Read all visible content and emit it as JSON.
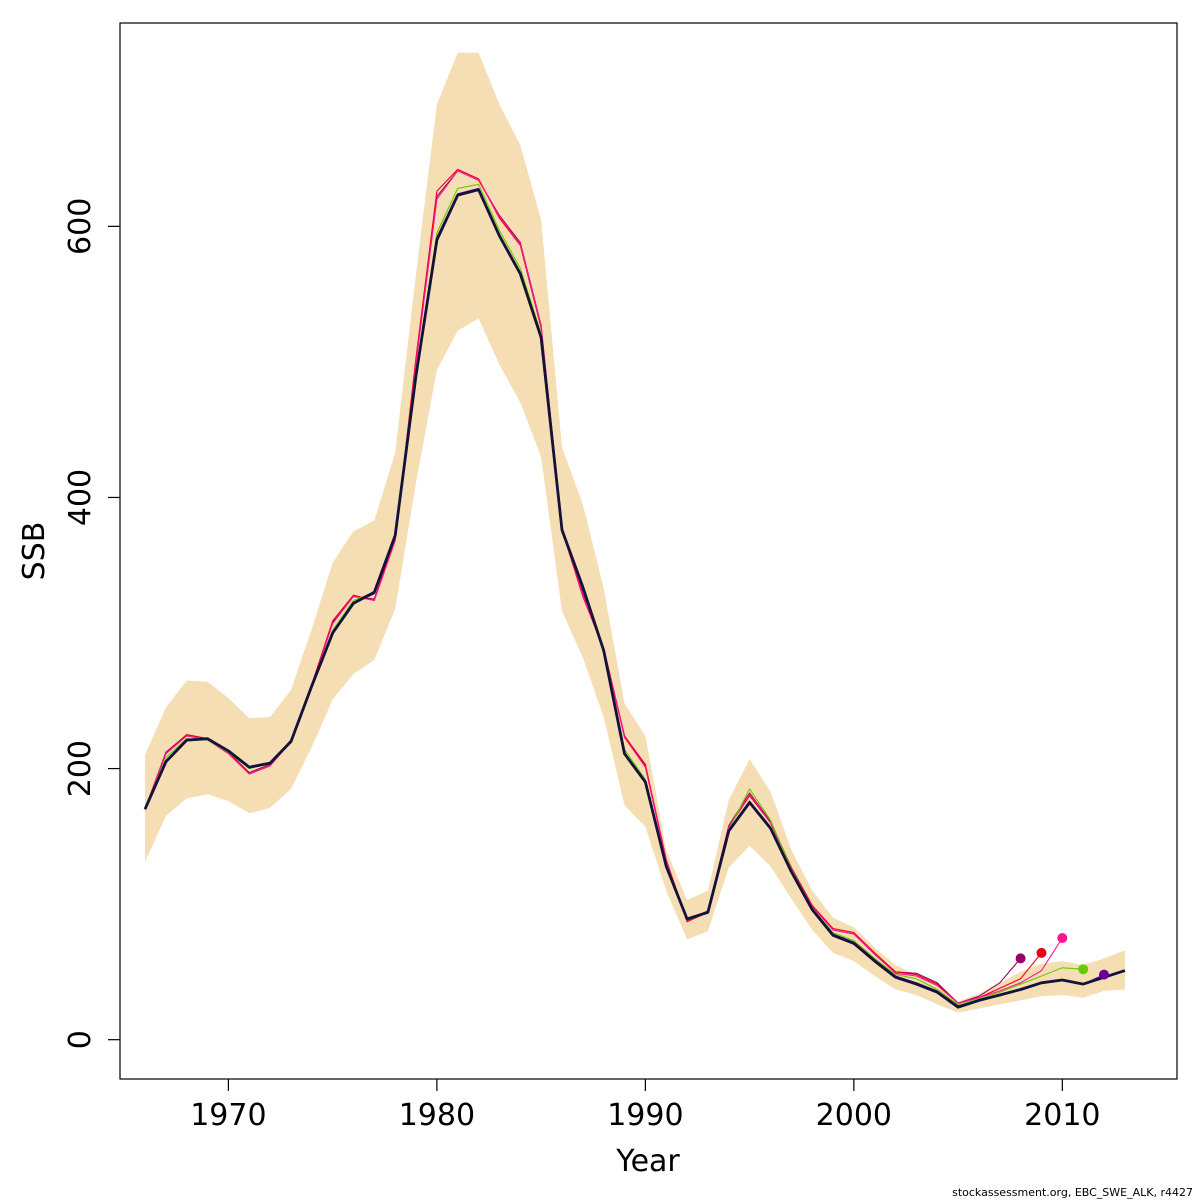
{
  "chart_data": {
    "type": "line",
    "title": "",
    "xlabel": "Year",
    "ylabel": "SSB",
    "xlim": [
      1964.8,
      2015.5
    ],
    "ylim": [
      -29,
      750
    ],
    "x_ticks": [
      1970,
      1980,
      1990,
      2000,
      2010
    ],
    "y_ticks": [
      0,
      200,
      400,
      600
    ],
    "grid": false,
    "legend": "none",
    "credit": "stockassessment.org, EBC_SWE_ALK, r4427",
    "colors": {
      "band": "#F5DEB3",
      "main": "#14113A",
      "retro": [
        "#990066",
        "#E8001B",
        "#FF1493",
        "#66CC00",
        "#660099"
      ]
    },
    "band": {
      "x": [
        1966,
        1967,
        1968,
        1969,
        1970,
        1971,
        1972,
        1973,
        1974,
        1975,
        1976,
        1977,
        1978,
        1979,
        1980,
        1981,
        1982,
        1983,
        1984,
        1985,
        1986,
        1987,
        1988,
        1989,
        1990,
        1991,
        1992,
        1993,
        1994,
        1995,
        1996,
        1997,
        1998,
        1999,
        2000,
        2001,
        2002,
        2003,
        2004,
        2005,
        2006,
        2007,
        2008,
        2009,
        2010,
        2011,
        2012,
        2013
      ],
      "lower": [
        131,
        165,
        178,
        181,
        176,
        167,
        171,
        185,
        216,
        251,
        270,
        280,
        318,
        411,
        494,
        523,
        532,
        498,
        470,
        430,
        316,
        282,
        238,
        173,
        157,
        110,
        74,
        80,
        127,
        143,
        128,
        104,
        81,
        64,
        58,
        47,
        37,
        33,
        26,
        20,
        23,
        26,
        29,
        32,
        33,
        31,
        36,
        37
      ],
      "upper": [
        210,
        245,
        265,
        264,
        252,
        237,
        238,
        258,
        303,
        352,
        375,
        383,
        433,
        565,
        690,
        728,
        728,
        690,
        660,
        605,
        437,
        395,
        333,
        248,
        224,
        140,
        103,
        110,
        177,
        207,
        183,
        140,
        110,
        90,
        83,
        68,
        55,
        48,
        42,
        28,
        34,
        42,
        50,
        56,
        58,
        55,
        60,
        66
      ]
    },
    "series": [
      {
        "x": [
          1966,
          1967,
          1968,
          1969,
          1970,
          1971,
          1972,
          1973,
          1974,
          1975,
          1976,
          1977,
          1978,
          1979,
          1980,
          1981,
          1982,
          1983,
          1984,
          1985,
          1986,
          1987,
          1988,
          1989,
          1990,
          1991,
          1992,
          1993,
          1994,
          1995,
          1996,
          1997,
          1998,
          1999,
          2000,
          2001,
          2002,
          2003,
          2004,
          2005,
          2006,
          2007,
          2008
        ],
        "values": [
          170,
          212,
          225,
          222,
          212,
          197,
          203,
          221,
          262,
          308,
          327,
          325,
          370,
          500,
          622,
          641,
          634,
          608,
          588,
          527,
          378,
          330,
          289,
          224,
          202,
          132,
          88,
          95,
          158,
          182,
          161,
          127,
          99,
          81,
          78,
          63,
          50,
          49,
          42,
          27,
          32,
          42,
          60
        ]
      },
      {
        "x": [
          1966,
          1967,
          1968,
          1969,
          1970,
          1971,
          1972,
          1973,
          1974,
          1975,
          1976,
          1977,
          1978,
          1979,
          1980,
          1981,
          1982,
          1983,
          1984,
          1985,
          1986,
          1987,
          1988,
          1989,
          1990,
          1991,
          1992,
          1993,
          1994,
          1995,
          1996,
          1997,
          1998,
          1999,
          2000,
          2001,
          2002,
          2003,
          2004,
          2005,
          2006,
          2007,
          2008,
          2009
        ],
        "values": [
          170,
          211,
          225,
          222,
          212,
          196,
          202,
          221,
          262,
          309,
          328,
          324,
          369,
          503,
          626,
          642,
          635,
          606,
          586,
          525,
          376,
          327,
          288,
          224,
          203,
          133,
          87,
          94,
          157,
          180,
          160,
          127,
          99,
          82,
          79,
          64,
          50,
          48,
          41,
          27,
          31,
          38,
          45,
          64
        ]
      },
      {
        "x": [
          1966,
          1967,
          1968,
          1969,
          1970,
          1971,
          1972,
          1973,
          1974,
          1975,
          1976,
          1977,
          1978,
          1979,
          1980,
          1981,
          1982,
          1983,
          1984,
          1985,
          1986,
          1987,
          1988,
          1989,
          1990,
          1991,
          1992,
          1993,
          1994,
          1995,
          1996,
          1997,
          1998,
          1999,
          2000,
          2001,
          2002,
          2003,
          2004,
          2005,
          2006,
          2007,
          2008,
          2009,
          2010
        ],
        "values": [
          170,
          211,
          224,
          221,
          211,
          196,
          202,
          220,
          261,
          307,
          327,
          324,
          368,
          499,
          620,
          641,
          634,
          607,
          587,
          526,
          377,
          328,
          288,
          223,
          201,
          132,
          88,
          95,
          157,
          181,
          160,
          126,
          98,
          81,
          78,
          63,
          49,
          47,
          40,
          27,
          31,
          36,
          42,
          51,
          75
        ]
      },
      {
        "x": [
          1966,
          1967,
          1968,
          1969,
          1970,
          1971,
          1972,
          1973,
          1974,
          1975,
          1976,
          1977,
          1978,
          1979,
          1980,
          1981,
          1982,
          1983,
          1984,
          1985,
          1986,
          1987,
          1988,
          1989,
          1990,
          1991,
          1992,
          1993,
          1994,
          1995,
          1996,
          1997,
          1998,
          1999,
          2000,
          2001,
          2002,
          2003,
          2004,
          2005,
          2006,
          2007,
          2008,
          2009,
          2010,
          2011
        ],
        "values": [
          170,
          208,
          222,
          221,
          212,
          200,
          204,
          221,
          261,
          302,
          324,
          330,
          372,
          491,
          595,
          628,
          631,
          597,
          569,
          521,
          377,
          333,
          288,
          214,
          192,
          129,
          89,
          94,
          155,
          185,
          162,
          126,
          97,
          79,
          73,
          60,
          48,
          45,
          37,
          26,
          30,
          35,
          41,
          47,
          53,
          52
        ]
      },
      {
        "x": [
          1966,
          1967,
          1968,
          1969,
          1970,
          1971,
          1972,
          1973,
          1974,
          1975,
          1976,
          1977,
          1978,
          1979,
          1980,
          1981,
          1982,
          1983,
          1984,
          1985,
          1986,
          1987,
          1988,
          1989,
          1990,
          1991,
          1992,
          1993,
          1994,
          1995,
          1996,
          1997,
          1998,
          1999,
          2000,
          2001,
          2002,
          2003,
          2004,
          2005,
          2006,
          2007,
          2008,
          2009,
          2010,
          2011,
          2012
        ],
        "values": [
          170,
          206,
          221,
          222,
          213,
          201,
          204,
          221,
          261,
          301,
          322,
          329,
          372,
          490,
          592,
          624,
          628,
          594,
          566,
          519,
          376,
          334,
          286,
          211,
          190,
          129,
          89,
          94,
          155,
          176,
          157,
          125,
          97,
          78,
          72,
          59,
          47,
          42,
          36,
          25,
          29,
          33,
          37,
          42,
          44,
          41,
          48
        ]
      },
      {
        "x": [
          1966,
          1967,
          1968,
          1969,
          1970,
          1971,
          1972,
          1973,
          1974,
          1975,
          1976,
          1977,
          1978,
          1979,
          1980,
          1981,
          1982,
          1983,
          1984,
          1985,
          1986,
          1987,
          1988,
          1989,
          1990,
          1991,
          1992,
          1993,
          1994,
          1995,
          1996,
          1997,
          1998,
          1999,
          2000,
          2001,
          2002,
          2003,
          2004,
          2005,
          2006,
          2007,
          2008,
          2009,
          2010,
          2011,
          2012,
          2013
        ],
        "values": [
          170,
          205,
          221,
          222,
          213,
          201,
          204,
          220,
          261,
          300,
          322,
          330,
          372,
          490,
          590,
          623,
          627,
          593,
          565,
          518,
          376,
          334,
          287,
          211,
          190,
          128,
          89,
          94,
          154,
          175,
          156,
          124,
          96,
          77,
          71,
          58,
          46,
          41,
          35,
          24,
          29,
          33,
          37,
          42,
          44,
          41,
          46,
          51
        ]
      }
    ]
  }
}
